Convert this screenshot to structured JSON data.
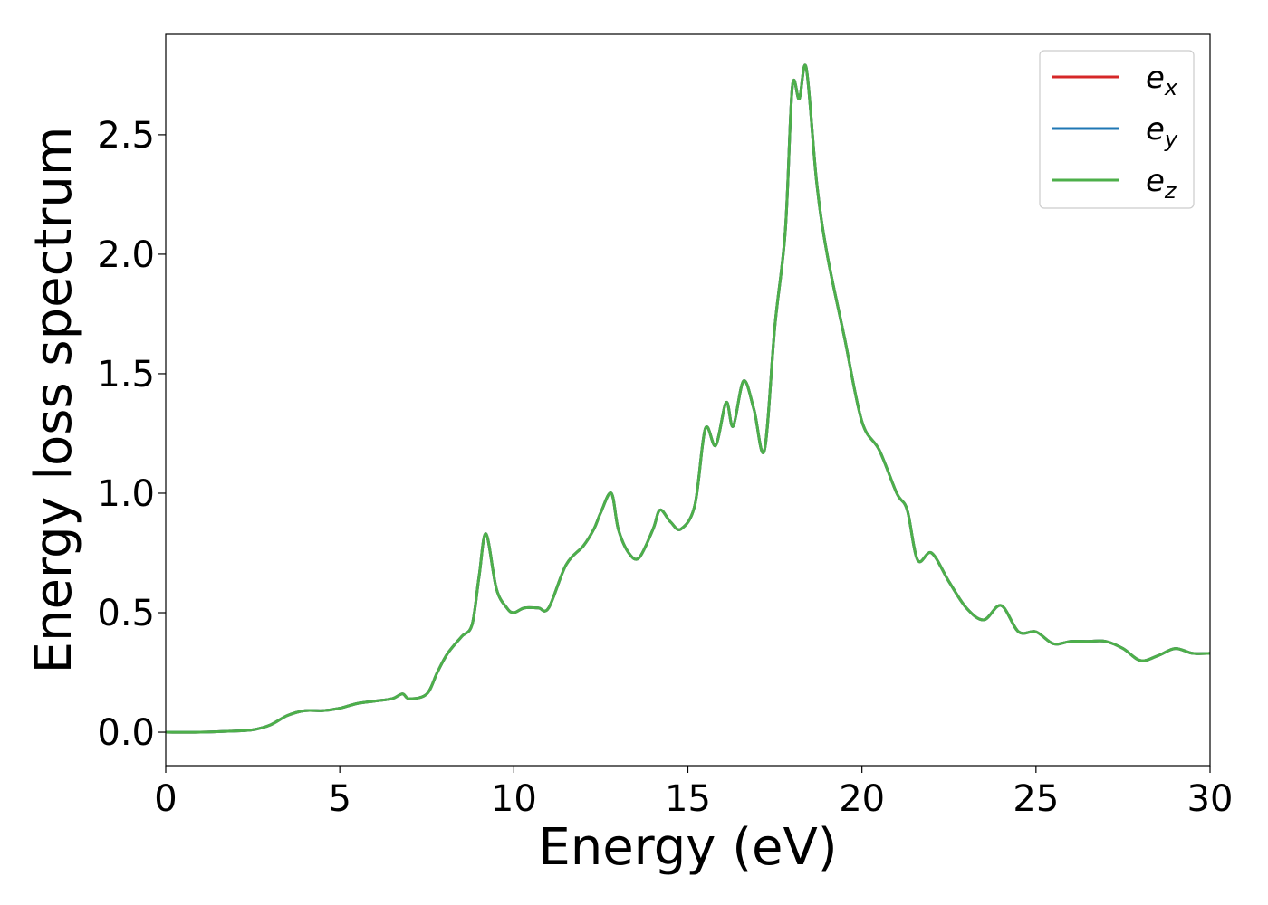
{
  "chart_data": {
    "type": "line",
    "title": "",
    "xlabel": "Energy (eV)",
    "ylabel": "Energy loss spectrum",
    "xlim": [
      0,
      30
    ],
    "ylim": [
      -0.14,
      2.92
    ],
    "xticks": [
      0,
      5,
      10,
      15,
      20,
      25,
      30
    ],
    "xtick_labels": [
      "0",
      "5",
      "10",
      "15",
      "20",
      "25",
      "30"
    ],
    "yticks": [
      0.0,
      0.5,
      1.0,
      1.5,
      2.0,
      2.5
    ],
    "ytick_labels": [
      "0.0",
      "0.5",
      "1.0",
      "1.5",
      "2.0",
      "2.5"
    ],
    "grid": false,
    "legend_position": "top-right",
    "series": [
      {
        "name_main": "e",
        "name_sub": "x",
        "color": "#d62728",
        "ref": "green"
      },
      {
        "name_main": "e",
        "name_sub": "y",
        "color": "#1f77b4",
        "ref": "green"
      },
      {
        "name_main": "e",
        "name_sub": "z",
        "color": "#4daf4a"
      }
    ],
    "x": [
      0,
      1,
      2,
      2.5,
      3,
      3.5,
      4,
      4.5,
      5,
      5.5,
      6,
      6.5,
      6.8,
      7,
      7.5,
      7.8,
      8.1,
      8.5,
      8.8,
      9.0,
      9.2,
      9.5,
      9.8,
      10.0,
      10.3,
      10.7,
      11.0,
      11.5,
      12.0,
      12.3,
      12.5,
      12.8,
      13.0,
      13.3,
      13.6,
      14.0,
      14.2,
      14.5,
      14.8,
      15.2,
      15.5,
      15.8,
      16.1,
      16.3,
      16.6,
      16.9,
      17.2,
      17.5,
      17.8,
      18.0,
      18.2,
      18.4,
      18.7,
      19.0,
      19.5,
      20.0,
      20.5,
      21.0,
      21.3,
      21.6,
      22.0,
      22.5,
      23.0,
      23.5,
      24.0,
      24.5,
      25.0,
      25.5,
      26.0,
      26.5,
      27.0,
      27.5,
      28.0,
      28.5,
      29.0,
      29.5,
      30.0
    ],
    "values": [
      0.0,
      0.0,
      0.005,
      0.01,
      0.03,
      0.07,
      0.09,
      0.09,
      0.1,
      0.12,
      0.13,
      0.14,
      0.16,
      0.14,
      0.16,
      0.25,
      0.33,
      0.4,
      0.45,
      0.65,
      0.83,
      0.6,
      0.52,
      0.5,
      0.52,
      0.52,
      0.52,
      0.7,
      0.78,
      0.85,
      0.92,
      1.0,
      0.85,
      0.75,
      0.73,
      0.85,
      0.93,
      0.88,
      0.85,
      0.95,
      1.27,
      1.2,
      1.38,
      1.28,
      1.47,
      1.35,
      1.18,
      1.7,
      2.1,
      2.7,
      2.65,
      2.78,
      2.3,
      2.0,
      1.65,
      1.3,
      1.18,
      1.0,
      0.93,
      0.72,
      0.75,
      0.63,
      0.52,
      0.47,
      0.53,
      0.42,
      0.42,
      0.37,
      0.38,
      0.38,
      0.38,
      0.35,
      0.3,
      0.32,
      0.35,
      0.33,
      0.33
    ]
  }
}
